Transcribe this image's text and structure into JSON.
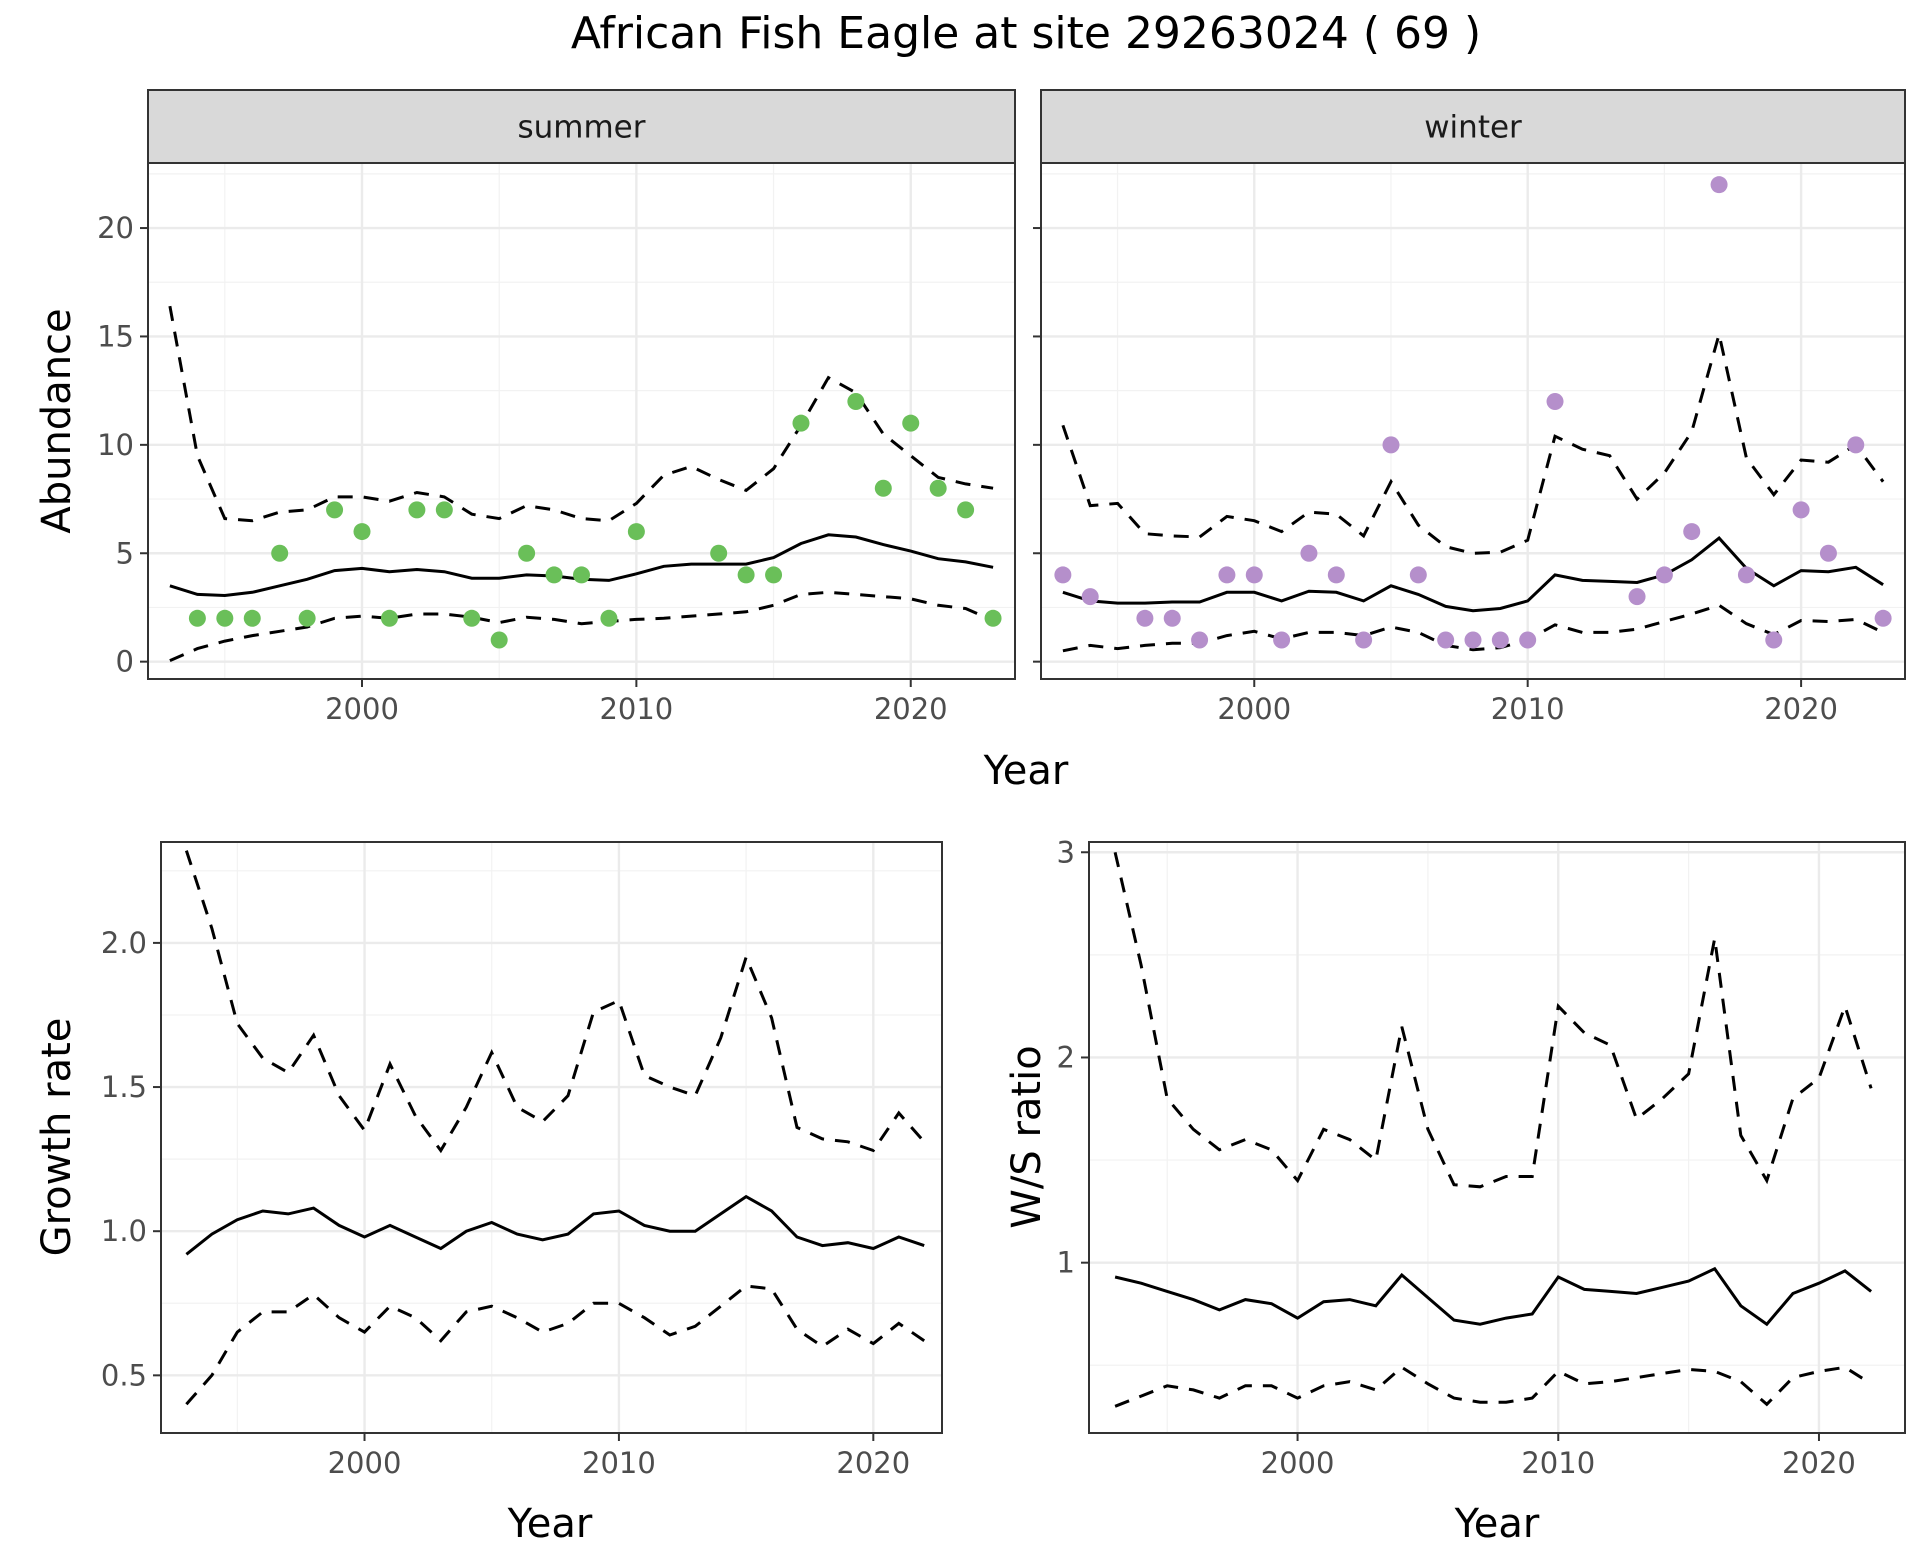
{
  "title": "African Fish Eagle at site 29263024 ( 69 )",
  "chart_data": [
    {
      "id": "summer",
      "type": "scatter",
      "strip": "summer",
      "xlabel": "Year",
      "ylabel": "Abundance",
      "xlim": [
        1992.2,
        2023.8
      ],
      "ylim": [
        -0.8,
        23.0
      ],
      "xticks": [
        2000,
        2010,
        2020
      ],
      "yticks": [
        0,
        5,
        10,
        15,
        20
      ],
      "point_color": "#6abf59",
      "points": {
        "x": [
          1994,
          1995,
          1996,
          1997,
          1998,
          1999,
          2000,
          2001,
          2002,
          2003,
          2004,
          2005,
          2006,
          2007,
          2008,
          2009,
          2010,
          2013,
          2014,
          2015,
          2016,
          2018,
          2019,
          2020,
          2021,
          2022,
          2023
        ],
        "y": [
          2,
          2,
          2,
          5,
          2,
          7,
          6,
          2,
          7,
          7,
          2,
          1,
          5,
          4,
          4,
          2,
          6,
          5,
          4,
          4,
          11,
          12,
          8,
          11,
          8,
          7,
          2
        ]
      },
      "series": [
        {
          "style": "solid",
          "x": [
            1993,
            1994,
            1995,
            1996,
            1997,
            1998,
            1999,
            2000,
            2001,
            2002,
            2003,
            2004,
            2005,
            2006,
            2007,
            2008,
            2009,
            2010,
            2011,
            2012,
            2013,
            2014,
            2015,
            2016,
            2017,
            2018,
            2019,
            2020,
            2021,
            2022,
            2023
          ],
          "y": [
            3.5,
            3.1,
            3.05,
            3.2,
            3.5,
            3.8,
            4.2,
            4.3,
            4.15,
            4.25,
            4.15,
            3.85,
            3.85,
            4.0,
            3.95,
            3.8,
            3.75,
            4.05,
            4.4,
            4.5,
            4.5,
            4.5,
            4.8,
            5.45,
            5.85,
            5.75,
            5.4,
            5.1,
            4.75,
            4.6,
            4.35
          ]
        },
        {
          "style": "dashed",
          "x": [
            1993,
            1994,
            1995,
            1996,
            1997,
            1998,
            1999,
            2000,
            2001,
            2002,
            2003,
            2004,
            2005,
            2006,
            2007,
            2008,
            2009,
            2010,
            2011,
            2012,
            2013,
            2014,
            2015,
            2016,
            2017,
            2018,
            2019,
            2020,
            2021,
            2022,
            2023
          ],
          "y": [
            16.4,
            9.5,
            6.6,
            6.5,
            6.9,
            7.0,
            7.6,
            7.6,
            7.4,
            7.8,
            7.6,
            6.8,
            6.6,
            7.2,
            7.0,
            6.6,
            6.5,
            7.3,
            8.6,
            9.0,
            8.4,
            7.9,
            8.9,
            10.9,
            13.1,
            12.4,
            10.5,
            9.5,
            8.5,
            8.2,
            8.0
          ]
        },
        {
          "style": "dashed",
          "x": [
            1993,
            1994,
            1995,
            1996,
            1997,
            1998,
            1999,
            2000,
            2001,
            2002,
            2003,
            2004,
            2005,
            2006,
            2007,
            2008,
            2009,
            2010,
            2011,
            2012,
            2013,
            2014,
            2015,
            2016,
            2017,
            2018,
            2019,
            2020,
            2021,
            2022,
            2023
          ],
          "y": [
            0.05,
            0.6,
            0.95,
            1.2,
            1.4,
            1.6,
            2.0,
            2.1,
            2.0,
            2.2,
            2.2,
            2.05,
            1.8,
            2.05,
            1.95,
            1.75,
            1.85,
            1.95,
            2.0,
            2.1,
            2.2,
            2.3,
            2.6,
            3.1,
            3.2,
            3.1,
            3.0,
            2.9,
            2.6,
            2.45,
            1.9
          ]
        }
      ]
    },
    {
      "id": "winter",
      "type": "scatter",
      "strip": "winter",
      "xlabel": "Year",
      "ylabel": "",
      "xlim": [
        1992.2,
        2023.8
      ],
      "ylim": [
        -0.8,
        23.0
      ],
      "xticks": [
        2000,
        2010,
        2020
      ],
      "yticks": [
        0,
        5,
        10,
        15,
        20
      ],
      "point_color": "#b58fcb",
      "points": {
        "x": [
          1993,
          1994,
          1996,
          1997,
          1998,
          1999,
          2000,
          2001,
          2002,
          2003,
          2004,
          2005,
          2006,
          2007,
          2008,
          2009,
          2010,
          2011,
          2014,
          2015,
          2016,
          2017,
          2018,
          2019,
          2020,
          2021,
          2022,
          2023
        ],
        "y": [
          4,
          3,
          2,
          2,
          1,
          4,
          4,
          1,
          5,
          4,
          1,
          10,
          4,
          1,
          1,
          1,
          1,
          12,
          3,
          4,
          6,
          22,
          4,
          1,
          7,
          5,
          10,
          2
        ]
      },
      "series": [
        {
          "style": "solid",
          "x": [
            1993,
            1994,
            1995,
            1996,
            1997,
            1998,
            1999,
            2000,
            2001,
            2002,
            2003,
            2004,
            2005,
            2006,
            2007,
            2008,
            2009,
            2010,
            2011,
            2012,
            2013,
            2014,
            2015,
            2016,
            2017,
            2018,
            2019,
            2020,
            2021,
            2022,
            2023
          ],
          "y": [
            3.2,
            2.8,
            2.7,
            2.7,
            2.75,
            2.75,
            3.2,
            3.2,
            2.8,
            3.25,
            3.2,
            2.8,
            3.5,
            3.1,
            2.55,
            2.35,
            2.45,
            2.8,
            4.0,
            3.75,
            3.7,
            3.65,
            4.0,
            4.7,
            5.7,
            4.3,
            3.5,
            4.2,
            4.15,
            4.35,
            3.55
          ]
        },
        {
          "style": "dashed",
          "x": [
            1993,
            1994,
            1995,
            1996,
            1997,
            1998,
            1999,
            2000,
            2001,
            2002,
            2003,
            2004,
            2005,
            2006,
            2007,
            2008,
            2009,
            2010,
            2011,
            2012,
            2013,
            2014,
            2015,
            2016,
            2017,
            2018,
            2019,
            2020,
            2021,
            2022,
            2023
          ],
          "y": [
            10.9,
            7.2,
            7.3,
            5.9,
            5.8,
            5.75,
            6.7,
            6.5,
            6.0,
            6.9,
            6.8,
            5.8,
            8.3,
            6.3,
            5.3,
            5.0,
            5.05,
            5.6,
            10.4,
            9.8,
            9.5,
            7.5,
            8.7,
            10.6,
            15.1,
            9.4,
            7.7,
            9.3,
            9.2,
            10.0,
            8.3
          ]
        },
        {
          "style": "dashed",
          "x": [
            1993,
            1994,
            1995,
            1996,
            1997,
            1998,
            1999,
            2000,
            2001,
            2002,
            2003,
            2004,
            2005,
            2006,
            2007,
            2008,
            2009,
            2010,
            2011,
            2012,
            2013,
            2014,
            2015,
            2016,
            2017,
            2018,
            2019,
            2020,
            2021,
            2022,
            2023
          ],
          "y": [
            0.5,
            0.75,
            0.6,
            0.75,
            0.85,
            0.85,
            1.2,
            1.4,
            1.05,
            1.35,
            1.35,
            1.2,
            1.6,
            1.35,
            0.75,
            0.55,
            0.65,
            1.0,
            1.7,
            1.35,
            1.35,
            1.5,
            1.85,
            2.2,
            2.6,
            1.75,
            1.25,
            1.9,
            1.85,
            1.95,
            1.35
          ]
        }
      ]
    },
    {
      "id": "growth",
      "type": "line",
      "strip": "",
      "xlabel": "Year",
      "ylabel": "Growth rate",
      "xlim": [
        1992.0,
        2022.7
      ],
      "ylim": [
        0.3,
        2.35
      ],
      "xticks": [
        2000,
        2010,
        2020
      ],
      "yticks": [
        0.5,
        1.0,
        1.5,
        2.0
      ],
      "ytick_labels": [
        "0.5",
        "1.0",
        "1.5",
        "2.0"
      ],
      "series": [
        {
          "style": "solid",
          "x": [
            1993,
            1994,
            1995,
            1996,
            1997,
            1998,
            1999,
            2000,
            2001,
            2002,
            2003,
            2004,
            2005,
            2006,
            2007,
            2008,
            2009,
            2010,
            2011,
            2012,
            2013,
            2014,
            2015,
            2016,
            2017,
            2018,
            2019,
            2020,
            2021,
            2022
          ],
          "y": [
            0.92,
            0.99,
            1.04,
            1.07,
            1.06,
            1.08,
            1.02,
            0.98,
            1.02,
            0.98,
            0.94,
            1.0,
            1.03,
            0.99,
            0.97,
            0.99,
            1.06,
            1.07,
            1.02,
            1.0,
            1.0,
            1.06,
            1.12,
            1.07,
            0.98,
            0.95,
            0.96,
            0.94,
            0.98,
            0.95
          ]
        },
        {
          "style": "dashed",
          "x": [
            1993,
            1994,
            1995,
            1996,
            1997,
            1998,
            1999,
            2000,
            2001,
            2002,
            2003,
            2004,
            2005,
            2006,
            2007,
            2008,
            2009,
            2010,
            2011,
            2012,
            2013,
            2014,
            2015,
            2016,
            2017,
            2018,
            2019,
            2020,
            2021,
            2022
          ],
          "y": [
            2.32,
            2.05,
            1.72,
            1.6,
            1.55,
            1.68,
            1.47,
            1.35,
            1.58,
            1.4,
            1.28,
            1.43,
            1.62,
            1.43,
            1.38,
            1.47,
            1.76,
            1.8,
            1.54,
            1.5,
            1.47,
            1.67,
            1.95,
            1.74,
            1.36,
            1.32,
            1.31,
            1.28,
            1.41,
            1.31
          ]
        },
        {
          "style": "dashed",
          "x": [
            1993,
            1994,
            1995,
            1996,
            1997,
            1998,
            1999,
            2000,
            2001,
            2002,
            2003,
            2004,
            2005,
            2006,
            2007,
            2008,
            2009,
            2010,
            2011,
            2012,
            2013,
            2014,
            2015,
            2016,
            2017,
            2018,
            2019,
            2020,
            2021,
            2022
          ],
          "y": [
            0.4,
            0.5,
            0.65,
            0.72,
            0.72,
            0.78,
            0.7,
            0.65,
            0.74,
            0.7,
            0.62,
            0.72,
            0.74,
            0.7,
            0.65,
            0.68,
            0.75,
            0.75,
            0.7,
            0.64,
            0.67,
            0.74,
            0.81,
            0.8,
            0.66,
            0.6,
            0.66,
            0.61,
            0.68,
            0.62
          ]
        }
      ]
    },
    {
      "id": "ws",
      "type": "line",
      "strip": "",
      "xlabel": "Year",
      "ylabel": "W/S ratio",
      "xlim": [
        1992.0,
        2023.3
      ],
      "ylim": [
        0.17,
        3.05
      ],
      "xticks": [
        2000,
        2010,
        2020
      ],
      "yticks": [
        1,
        2,
        3
      ],
      "ytick_labels": [
        "1",
        "2",
        "3"
      ],
      "series": [
        {
          "style": "solid",
          "x": [
            1993,
            1994,
            1995,
            1996,
            1997,
            1998,
            1999,
            2000,
            2001,
            2002,
            2003,
            2004,
            2005,
            2006,
            2007,
            2008,
            2009,
            2010,
            2011,
            2012,
            2013,
            2014,
            2015,
            2016,
            2017,
            2018,
            2019,
            2020,
            2021,
            2022
          ],
          "y": [
            0.93,
            0.9,
            0.86,
            0.82,
            0.77,
            0.82,
            0.8,
            0.73,
            0.81,
            0.82,
            0.79,
            0.94,
            0.83,
            0.72,
            0.7,
            0.73,
            0.75,
            0.93,
            0.87,
            0.86,
            0.85,
            0.88,
            0.91,
            0.97,
            0.79,
            0.7,
            0.85,
            0.9,
            0.96,
            0.86
          ]
        },
        {
          "style": "dashed",
          "x": [
            1993,
            1994,
            1995,
            1996,
            1997,
            1998,
            1999,
            2000,
            2001,
            2002,
            2003,
            2004,
            2005,
            2006,
            2007,
            2008,
            2009,
            2010,
            2011,
            2012,
            2013,
            2014,
            2015,
            2016,
            2017,
            2018,
            2019,
            2020,
            2021,
            2022
          ],
          "y": [
            3.0,
            2.45,
            1.8,
            1.65,
            1.55,
            1.6,
            1.55,
            1.4,
            1.65,
            1.6,
            1.5,
            2.15,
            1.65,
            1.38,
            1.37,
            1.42,
            1.42,
            2.25,
            2.12,
            2.06,
            1.7,
            1.8,
            1.92,
            2.58,
            1.62,
            1.4,
            1.8,
            1.9,
            2.25,
            1.85
          ]
        },
        {
          "style": "dashed",
          "x": [
            1993,
            1994,
            1995,
            1996,
            1997,
            1998,
            1999,
            2000,
            2001,
            2002,
            2003,
            2004,
            2005,
            2006,
            2007,
            2008,
            2009,
            2010,
            2011,
            2012,
            2013,
            2014,
            2015,
            2016,
            2017,
            2018,
            2019,
            2020,
            2021,
            2022
          ],
          "y": [
            0.3,
            0.35,
            0.4,
            0.38,
            0.34,
            0.4,
            0.4,
            0.34,
            0.4,
            0.42,
            0.38,
            0.49,
            0.41,
            0.34,
            0.32,
            0.32,
            0.34,
            0.47,
            0.41,
            0.42,
            0.44,
            0.46,
            0.48,
            0.47,
            0.42,
            0.31,
            0.44,
            0.47,
            0.49,
            0.41
          ]
        }
      ]
    }
  ]
}
